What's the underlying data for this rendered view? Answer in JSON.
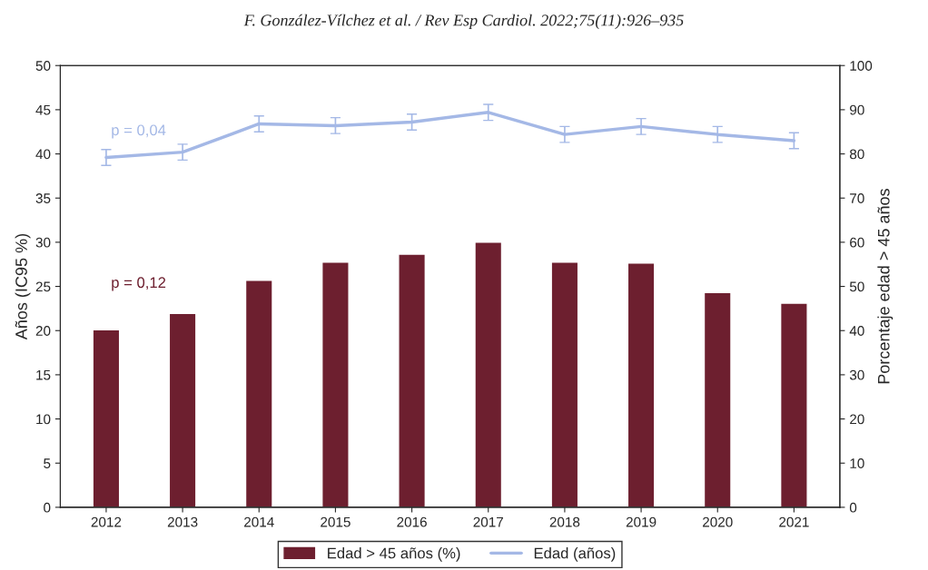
{
  "chart_data": {
    "type": "bar",
    "title": "F. González-Vílchez et al. / Rev Esp Cardiol. 2022;75(11):926–935",
    "categories": [
      "2012",
      "2013",
      "2014",
      "2015",
      "2016",
      "2017",
      "2018",
      "2019",
      "2020",
      "2021"
    ],
    "series": [
      {
        "name": "Edad > 45 años (%)",
        "axis": "y2",
        "color": "#6d1f2f",
        "values": [
          40.2,
          43.9,
          51.4,
          55.5,
          57.3,
          60.0,
          55.5,
          55.3,
          48.6,
          46.2
        ]
      },
      {
        "name": "Edad (años)",
        "type": "line",
        "axis": "y",
        "color": "#a4b8e6",
        "values": [
          39.6,
          40.2,
          43.4,
          43.2,
          43.6,
          44.7,
          42.2,
          43.1,
          42.2,
          41.5
        ],
        "errors": [
          0.9,
          0.9,
          0.9,
          0.9,
          0.9,
          0.9,
          0.9,
          0.9,
          0.9,
          0.9
        ]
      }
    ],
    "ylabel": "Años (IC95 %)",
    "y2label": "Porcentaje edad > 45 años",
    "ylim": [
      0,
      50
    ],
    "yticks": [
      0,
      5,
      10,
      15,
      20,
      25,
      30,
      35,
      40,
      45,
      50
    ],
    "y2lim": [
      0,
      100
    ],
    "y2ticks": [
      0,
      10,
      20,
      30,
      40,
      50,
      60,
      70,
      80,
      90,
      100
    ],
    "annotations": [
      "p = 0,04",
      "p = 0,12"
    ],
    "legend": "bottom",
    "grid": false,
    "marker": "none",
    "line_style": "solid"
  }
}
